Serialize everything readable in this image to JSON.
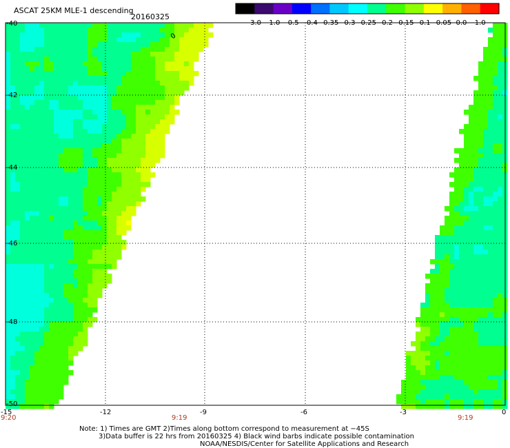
{
  "title": {
    "product": "ASCAT 25KM MLE-1 descending",
    "date": "20160325"
  },
  "colorbar": {
    "labels": [
      "-3.0",
      "-1.0",
      "-0.5",
      "-0.4",
      "-0.35",
      "-0.3",
      "-0.25",
      "-0.2",
      "-0.15",
      "-0.1",
      "-0.05",
      "0.0",
      "1.0"
    ],
    "colors": [
      "#000000",
      "#3a0a6e",
      "#6a00c8",
      "#0000ff",
      "#0070ff",
      "#00c8ff",
      "#00ffff",
      "#00ff90",
      "#40ff00",
      "#90ff00",
      "#ffff00",
      "#ffb000",
      "#ff6000",
      "#ff0000"
    ]
  },
  "map": {
    "lat_labels": [
      "-40",
      "-42",
      "-44",
      "-46",
      "-48",
      "-50"
    ],
    "lon_labels": [
      "-15",
      "-12",
      "-9",
      "-6",
      "-3",
      "0"
    ],
    "time_labels": [
      "9:20",
      "9:19",
      "9:19"
    ],
    "wind_barb_marker": "0",
    "swath_colors": [
      "#00ffdd",
      "#00ff90",
      "#40ff00",
      "#90ff00",
      "#d8ff00",
      "#ffff00",
      "#ffb000",
      "#ff8000"
    ]
  },
  "notes": {
    "line1": "Note: 1) Times are GMT 2)Times along bottom correspond to measurement at −45S",
    "line2": "3)Data buffer is 22 hrs from 20160325 4) Black wind barbs indicate possible contamination",
    "line3": "NOAA/NESDIS/Center for Satellite Applications and Research"
  }
}
